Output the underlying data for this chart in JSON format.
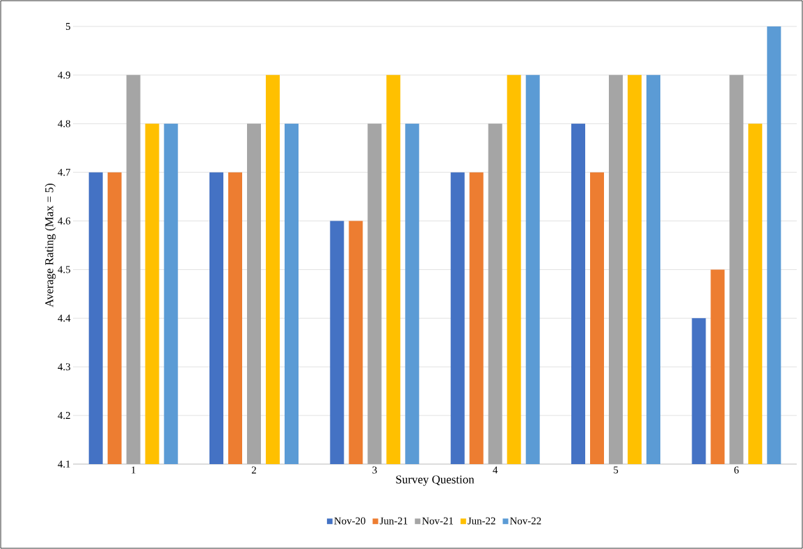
{
  "chart_data": {
    "type": "bar",
    "xlabel": "Survey Question",
    "ylabel": "Average Rating (Max = 5)",
    "categories": [
      "1",
      "2",
      "3",
      "4",
      "5",
      "6"
    ],
    "series": [
      {
        "name": "Nov-20",
        "color": "#4472c4",
        "values": [
          4.7,
          4.7,
          4.6,
          4.7,
          4.8,
          4.4
        ]
      },
      {
        "name": "Jun-21",
        "color": "#ed7d31",
        "values": [
          4.7,
          4.7,
          4.6,
          4.7,
          4.7,
          4.5
        ]
      },
      {
        "name": "Nov-21",
        "color": "#a5a5a5",
        "values": [
          4.9,
          4.8,
          4.8,
          4.8,
          4.9,
          4.9
        ]
      },
      {
        "name": "Jun-22",
        "color": "#ffc000",
        "values": [
          4.8,
          4.9,
          4.9,
          4.9,
          4.9,
          4.8
        ]
      },
      {
        "name": "Nov-22",
        "color": "#5b9bd5",
        "values": [
          4.8,
          4.8,
          4.8,
          4.9,
          4.9,
          5.0
        ]
      }
    ],
    "ylim": [
      4.1,
      5.0
    ],
    "yticks": [
      4.1,
      4.2,
      4.3,
      4.4,
      4.5,
      4.6,
      4.7,
      4.8,
      4.9,
      5
    ],
    "grid": "y",
    "legend": "bottom"
  }
}
